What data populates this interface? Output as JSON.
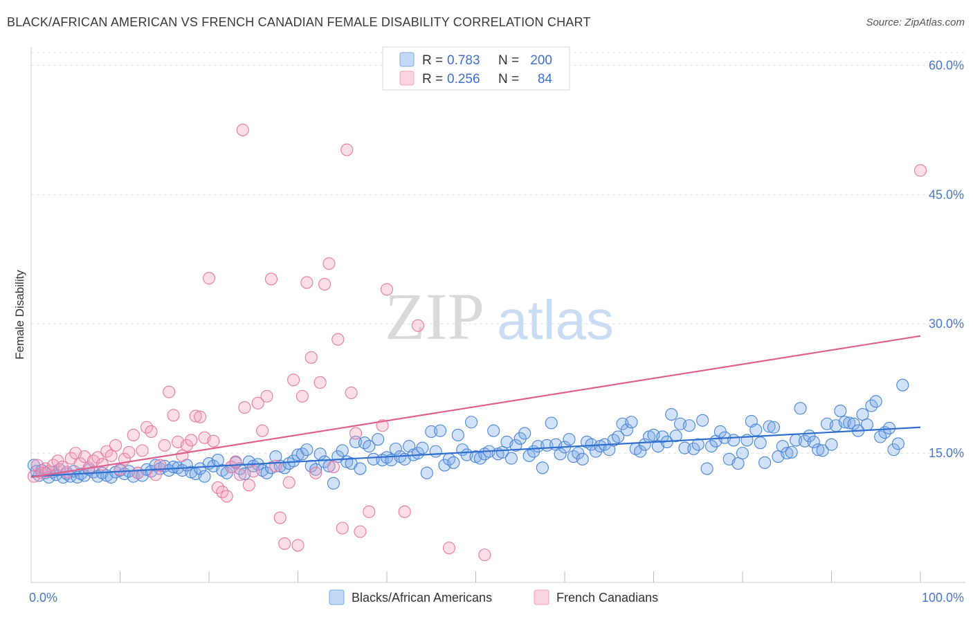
{
  "header": {
    "title": "BLACK/AFRICAN AMERICAN VS FRENCH CANADIAN FEMALE DISABILITY CORRELATION CHART",
    "source": "Source: ZipAtlas.com"
  },
  "watermark": {
    "zip": "ZIP",
    "atlas": "atlas"
  },
  "legend": {
    "rows": [
      {
        "r_label": "R =",
        "r_value": "0.783",
        "n_label": "N =",
        "n_value": "200",
        "color": "#7aaae8"
      },
      {
        "r_label": "R =",
        "r_value": "0.256",
        "n_label": "N =",
        "n_value": "84",
        "color": "#f4a0bc"
      }
    ]
  },
  "bottom_legend": [
    {
      "label": "Blacks/African Americans",
      "color": "#7aaae8"
    },
    {
      "label": "French Canadians",
      "color": "#f4a0bc"
    }
  ],
  "chart_data": {
    "type": "scatter",
    "ylabel": "Female Disability",
    "xlim": [
      0,
      100
    ],
    "ylim": [
      0,
      61
    ],
    "x_tick_labels": [
      "0.0%",
      "100.0%"
    ],
    "y_ticks": [
      15,
      30,
      45,
      60
    ],
    "y_tick_labels": [
      "15.0%",
      "30.0%",
      "45.0%",
      "60.0%"
    ],
    "grid": true,
    "legend_position": "top-center",
    "series": [
      {
        "name": "Blacks/African Americans",
        "color": "#4a86d8",
        "fill": "rgba(122,170,232,0.35)",
        "trend_color": "#2f6fd0",
        "trend": [
          [
            0,
            12.3
          ],
          [
            100,
            18.0
          ]
        ],
        "points": [
          [
            0.3,
            13.6
          ],
          [
            0.6,
            12.9
          ],
          [
            0.9,
            12.4
          ],
          [
            1.2,
            13.0
          ],
          [
            1.6,
            12.7
          ],
          [
            2.0,
            12.2
          ],
          [
            2.4,
            12.8
          ],
          [
            2.8,
            12.5
          ],
          [
            3.2,
            13.1
          ],
          [
            3.6,
            12.2
          ],
          [
            4.0,
            12.6
          ],
          [
            4.4,
            12.3
          ],
          [
            4.8,
            12.9
          ],
          [
            5.2,
            12.2
          ],
          [
            5.6,
            12.6
          ],
          [
            6.0,
            12.4
          ],
          [
            6.5,
            13.1
          ],
          [
            7.0,
            12.8
          ],
          [
            7.5,
            12.3
          ],
          [
            8.0,
            12.7
          ],
          [
            8.5,
            12.4
          ],
          [
            9.0,
            12.2
          ],
          [
            9.5,
            12.8
          ],
          [
            10.0,
            13.0
          ],
          [
            10.5,
            12.6
          ],
          [
            11.0,
            12.9
          ],
          [
            11.5,
            12.3
          ],
          [
            12.0,
            12.7
          ],
          [
            12.5,
            12.4
          ],
          [
            13.0,
            13.1
          ],
          [
            13.5,
            12.9
          ],
          [
            14.0,
            13.6
          ],
          [
            14.5,
            13.2
          ],
          [
            15.0,
            13.5
          ],
          [
            15.5,
            13.0
          ],
          [
            16.0,
            13.4
          ],
          [
            16.5,
            13.3
          ],
          [
            17.0,
            13.0
          ],
          [
            17.5,
            13.6
          ],
          [
            18.0,
            12.8
          ],
          [
            18.5,
            12.6
          ],
          [
            19.0,
            13.2
          ],
          [
            19.5,
            12.3
          ],
          [
            20.0,
            13.8
          ],
          [
            20.5,
            13.5
          ],
          [
            21.0,
            14.2
          ],
          [
            21.5,
            13.0
          ],
          [
            22.0,
            12.7
          ],
          [
            22.5,
            13.4
          ],
          [
            23.0,
            13.9
          ],
          [
            23.5,
            13.2
          ],
          [
            24.0,
            12.6
          ],
          [
            24.5,
            14.0
          ],
          [
            25.0,
            13.5
          ],
          [
            25.5,
            13.7
          ],
          [
            26.0,
            13.0
          ],
          [
            26.5,
            12.7
          ],
          [
            27.0,
            13.3
          ],
          [
            27.5,
            14.6
          ],
          [
            28.0,
            13.5
          ],
          [
            28.5,
            13.3
          ],
          [
            29.0,
            13.8
          ],
          [
            29.5,
            14.1
          ],
          [
            30.0,
            14.8
          ],
          [
            30.5,
            14.9
          ],
          [
            31.0,
            15.4
          ],
          [
            31.5,
            13.5
          ],
          [
            32.0,
            13.1
          ],
          [
            32.5,
            14.9
          ],
          [
            33.0,
            14.0
          ],
          [
            33.5,
            13.5
          ],
          [
            34.0,
            11.5
          ],
          [
            34.5,
            14.6
          ],
          [
            35.0,
            15.3
          ],
          [
            35.5,
            14.0
          ],
          [
            36.0,
            13.8
          ],
          [
            36.5,
            16.3
          ],
          [
            37.0,
            13.2
          ],
          [
            37.5,
            16.2
          ],
          [
            38.0,
            15.8
          ],
          [
            38.5,
            14.3
          ],
          [
            39.0,
            16.6
          ],
          [
            39.5,
            14.2
          ],
          [
            40.0,
            14.5
          ],
          [
            40.5,
            14.2
          ],
          [
            41.0,
            15.5
          ],
          [
            41.5,
            14.6
          ],
          [
            42.0,
            14.3
          ],
          [
            42.5,
            15.8
          ],
          [
            43.0,
            14.8
          ],
          [
            43.5,
            15.0
          ],
          [
            44.0,
            15.6
          ],
          [
            44.5,
            12.7
          ],
          [
            45.0,
            17.5
          ],
          [
            45.5,
            15.2
          ],
          [
            46.0,
            17.6
          ],
          [
            46.5,
            13.6
          ],
          [
            47.0,
            14.3
          ],
          [
            47.5,
            13.9
          ],
          [
            48.0,
            17.1
          ],
          [
            48.5,
            15.4
          ],
          [
            49.0,
            14.8
          ],
          [
            49.5,
            18.6
          ],
          [
            50.0,
            14.6
          ],
          [
            50.5,
            14.4
          ],
          [
            51.0,
            14.9
          ],
          [
            51.5,
            15.2
          ],
          [
            52.0,
            17.6
          ],
          [
            52.5,
            14.9
          ],
          [
            53.0,
            15.1
          ],
          [
            53.5,
            16.3
          ],
          [
            54.0,
            14.4
          ],
          [
            54.5,
            15.9
          ],
          [
            55.0,
            16.7
          ],
          [
            55.5,
            17.3
          ],
          [
            56.0,
            14.7
          ],
          [
            56.5,
            15.2
          ],
          [
            57.0,
            15.8
          ],
          [
            57.5,
            13.3
          ],
          [
            58.0,
            15.9
          ],
          [
            58.5,
            18.5
          ],
          [
            59.0,
            16.0
          ],
          [
            59.5,
            14.9
          ],
          [
            60.0,
            15.7
          ],
          [
            60.5,
            16.6
          ],
          [
            61.0,
            14.6
          ],
          [
            61.5,
            15.0
          ],
          [
            62.0,
            14.3
          ],
          [
            62.5,
            16.3
          ],
          [
            63.0,
            16.0
          ],
          [
            63.5,
            15.2
          ],
          [
            64.0,
            15.8
          ],
          [
            64.5,
            16.0
          ],
          [
            65.0,
            15.4
          ],
          [
            65.5,
            16.5
          ],
          [
            66.0,
            16.9
          ],
          [
            66.5,
            18.4
          ],
          [
            67.0,
            17.7
          ],
          [
            67.5,
            18.6
          ],
          [
            68.0,
            15.5
          ],
          [
            68.5,
            15.2
          ],
          [
            69.0,
            16.0
          ],
          [
            69.5,
            16.9
          ],
          [
            70.0,
            17.1
          ],
          [
            70.5,
            15.8
          ],
          [
            71.0,
            16.9
          ],
          [
            71.5,
            16.3
          ],
          [
            72.0,
            19.5
          ],
          [
            72.5,
            17.0
          ],
          [
            73.0,
            18.4
          ],
          [
            73.5,
            15.6
          ],
          [
            74.0,
            18.2
          ],
          [
            74.5,
            15.5
          ],
          [
            75.0,
            16.0
          ],
          [
            75.5,
            18.8
          ],
          [
            76.0,
            13.2
          ],
          [
            76.5,
            15.8
          ],
          [
            77.0,
            16.4
          ],
          [
            77.5,
            17.5
          ],
          [
            78.0,
            16.8
          ],
          [
            78.5,
            14.3
          ],
          [
            79.0,
            16.5
          ],
          [
            79.5,
            13.8
          ],
          [
            80.0,
            15.0
          ],
          [
            80.5,
            16.5
          ],
          [
            81.0,
            18.7
          ],
          [
            81.5,
            17.7
          ],
          [
            82.0,
            16.2
          ],
          [
            82.5,
            13.9
          ],
          [
            83.0,
            18.1
          ],
          [
            83.5,
            18.0
          ],
          [
            84.0,
            14.6
          ],
          [
            84.5,
            15.8
          ],
          [
            85.0,
            15.0
          ],
          [
            85.5,
            15.1
          ],
          [
            86.0,
            16.5
          ],
          [
            86.5,
            20.2
          ],
          [
            87.0,
            16.4
          ],
          [
            87.5,
            17.0
          ],
          [
            88.0,
            16.3
          ],
          [
            88.5,
            15.4
          ],
          [
            89.0,
            15.3
          ],
          [
            89.5,
            18.4
          ],
          [
            90.0,
            16.0
          ],
          [
            90.5,
            18.2
          ],
          [
            91.0,
            19.9
          ],
          [
            91.5,
            18.6
          ],
          [
            92.0,
            18.5
          ],
          [
            92.5,
            18.4
          ],
          [
            93.0,
            17.6
          ],
          [
            93.5,
            19.5
          ],
          [
            94.0,
            18.3
          ],
          [
            94.5,
            20.5
          ],
          [
            95.0,
            21.0
          ],
          [
            95.5,
            16.9
          ],
          [
            96.0,
            17.4
          ],
          [
            96.5,
            17.9
          ],
          [
            97.0,
            15.4
          ],
          [
            97.5,
            16.1
          ],
          [
            98.0,
            22.9
          ]
        ]
      },
      {
        "name": "French Canadians",
        "color": "#e87aa0",
        "fill": "rgba(244,160,188,0.35)",
        "trend_color": "#e0608c",
        "trend": [
          [
            0,
            12.2
          ],
          [
            100,
            28.6
          ]
        ],
        "points": [
          [
            0.3,
            12.3
          ],
          [
            0.7,
            13.6
          ],
          [
            1.2,
            12.7
          ],
          [
            1.6,
            13.2
          ],
          [
            2.0,
            12.9
          ],
          [
            2.5,
            13.6
          ],
          [
            3.0,
            14.1
          ],
          [
            3.5,
            13.4
          ],
          [
            4.0,
            12.8
          ],
          [
            4.5,
            14.4
          ],
          [
            5.0,
            15.0
          ],
          [
            5.5,
            13.8
          ],
          [
            6.0,
            14.6
          ],
          [
            6.5,
            13.3
          ],
          [
            7.0,
            14.1
          ],
          [
            7.5,
            14.5
          ],
          [
            8.0,
            13.7
          ],
          [
            8.5,
            15.2
          ],
          [
            9.0,
            14.7
          ],
          [
            9.5,
            15.9
          ],
          [
            10.0,
            13.1
          ],
          [
            10.5,
            14.3
          ],
          [
            11.0,
            15.1
          ],
          [
            11.5,
            17.1
          ],
          [
            12.0,
            12.7
          ],
          [
            12.5,
            15.3
          ],
          [
            13.0,
            18.0
          ],
          [
            13.5,
            17.5
          ],
          [
            14.0,
            12.5
          ],
          [
            14.5,
            13.6
          ],
          [
            15.0,
            15.9
          ],
          [
            15.5,
            22.1
          ],
          [
            16.0,
            19.4
          ],
          [
            16.5,
            16.3
          ],
          [
            17.0,
            14.7
          ],
          [
            17.5,
            15.9
          ],
          [
            18.0,
            16.5
          ],
          [
            18.5,
            19.3
          ],
          [
            19.0,
            19.2
          ],
          [
            19.5,
            16.8
          ],
          [
            20.0,
            35.3
          ],
          [
            20.5,
            16.4
          ],
          [
            21.0,
            11.0
          ],
          [
            21.5,
            10.5
          ],
          [
            22.0,
            10.0
          ],
          [
            22.5,
            13.4
          ],
          [
            23.0,
            14.0
          ],
          [
            23.5,
            12.5
          ],
          [
            23.8,
            52.5
          ],
          [
            24.0,
            20.3
          ],
          [
            24.5,
            11.3
          ],
          [
            25.0,
            12.9
          ],
          [
            25.5,
            20.8
          ],
          [
            26.0,
            17.6
          ],
          [
            26.5,
            21.6
          ],
          [
            27.0,
            35.2
          ],
          [
            27.5,
            13.5
          ],
          [
            28.0,
            7.5
          ],
          [
            28.5,
            4.5
          ],
          [
            29.0,
            11.6
          ],
          [
            29.5,
            23.5
          ],
          [
            30.0,
            4.3
          ],
          [
            30.5,
            21.6
          ],
          [
            31.0,
            34.8
          ],
          [
            31.5,
            26.1
          ],
          [
            32.0,
            12.7
          ],
          [
            32.5,
            23.2
          ],
          [
            33.0,
            34.6
          ],
          [
            33.5,
            37.0
          ],
          [
            34.0,
            13.4
          ],
          [
            34.5,
            28.2
          ],
          [
            35.0,
            6.3
          ],
          [
            35.5,
            50.2
          ],
          [
            36.0,
            22.0
          ],
          [
            36.5,
            17.3
          ],
          [
            37.0,
            5.9
          ],
          [
            38.0,
            8.2
          ],
          [
            39.5,
            18.2
          ],
          [
            40.0,
            34.0
          ],
          [
            42.0,
            8.2
          ],
          [
            43.5,
            29.8
          ],
          [
            47.0,
            4.0
          ],
          [
            51.0,
            3.2
          ],
          [
            100,
            47.8
          ]
        ]
      }
    ]
  }
}
